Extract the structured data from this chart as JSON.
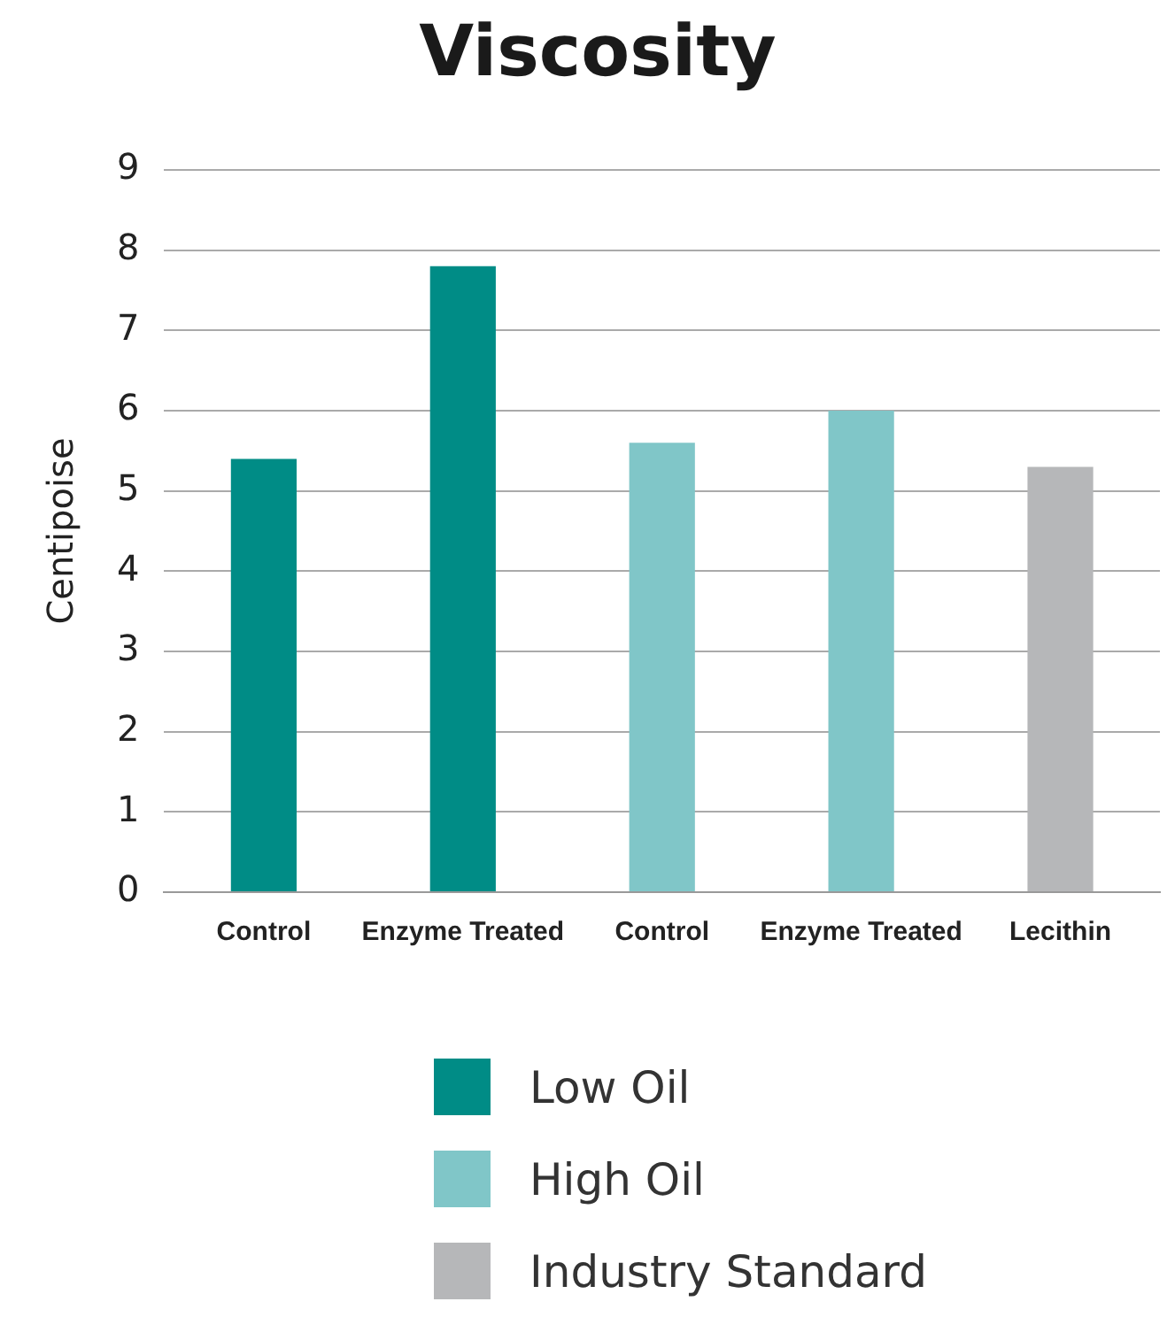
{
  "chart_data": {
    "type": "bar",
    "title": "Viscosity",
    "ylabel": "Centipoise",
    "categories": [
      "Control",
      "Enzyme Treated",
      "Control",
      "Enzyme Treated",
      "Lecithin"
    ],
    "series": [
      {
        "name": "Low Oil",
        "color": "#008c86",
        "values": [
          5.4,
          7.8,
          null,
          null,
          null
        ]
      },
      {
        "name": "High Oil",
        "color": "#80c6c8",
        "values": [
          null,
          null,
          5.6,
          6.0,
          null
        ]
      },
      {
        "name": "Industry Standard",
        "color": "#b6b7b9",
        "values": [
          null,
          null,
          null,
          null,
          5.3
        ]
      }
    ],
    "ylim": [
      0,
      9
    ],
    "yticks": [
      0,
      1,
      2,
      3,
      4,
      5,
      6,
      7,
      8,
      9
    ],
    "grid": "y",
    "legend": "bottom"
  }
}
